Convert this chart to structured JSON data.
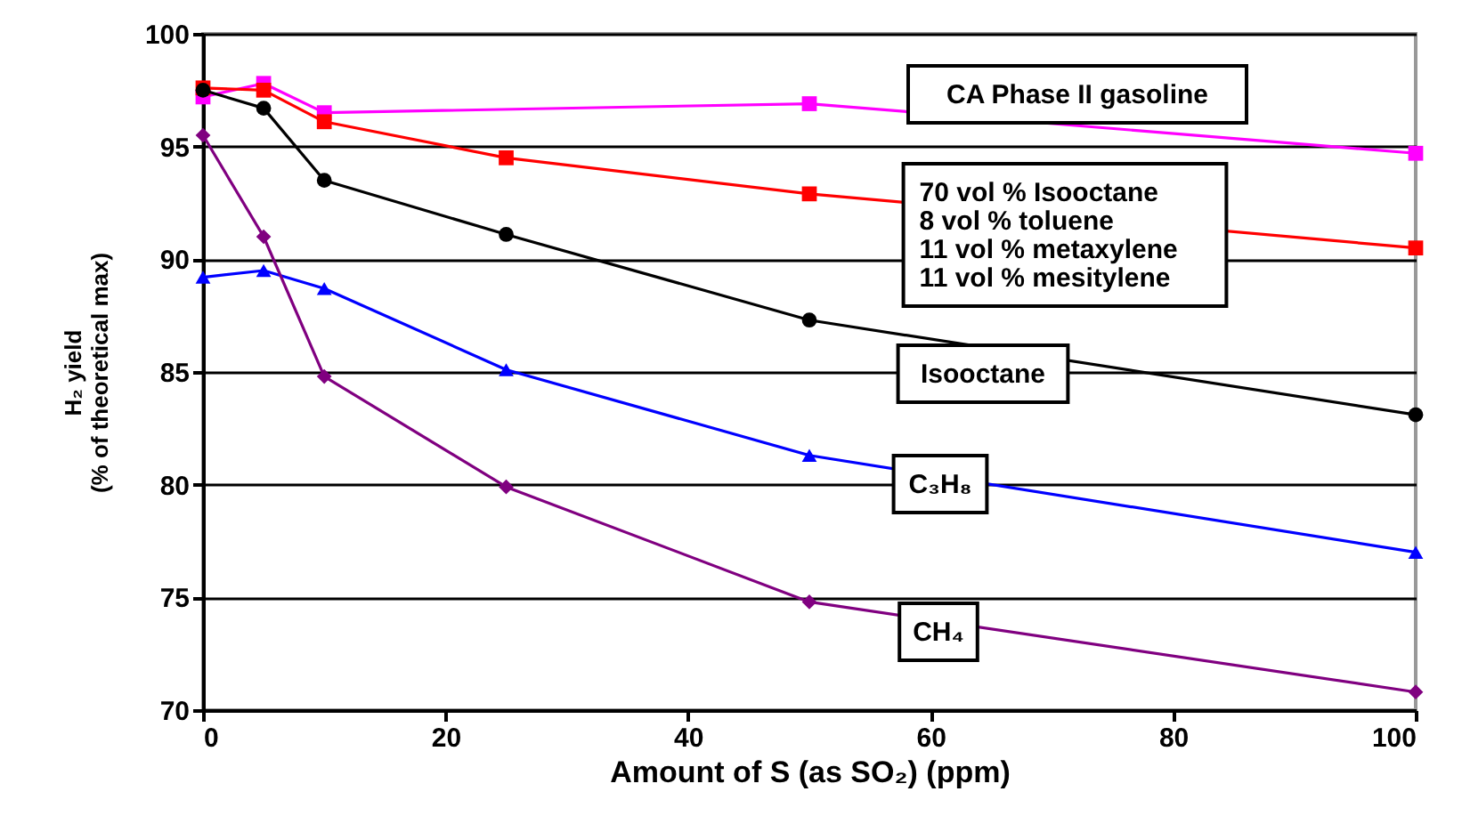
{
  "chart_data": {
    "type": "line",
    "xlabel": "Amount of S (as SO₂) (ppm)",
    "ylabel": "H₂ yield\n(% of theoretical max)",
    "xlim": [
      0,
      100
    ],
    "xticks": [
      0,
      20,
      40,
      60,
      80,
      100
    ],
    "ylim": [
      70,
      100
    ],
    "yticks": [
      70,
      75,
      80,
      85,
      90,
      95,
      100
    ],
    "grid": "y",
    "legend": false,
    "series": [
      {
        "name": "CA Phase II gasoline",
        "color": "#ff00ff",
        "marker": "square",
        "x": [
          0,
          5,
          10,
          50,
          100
        ],
        "values": [
          97.2,
          97.8,
          96.5,
          96.9,
          94.7
        ]
      },
      {
        "name": "70 vol % Isooctane\n 8 vol % toluene\n11 vol % metaxylene\n11 vol % mesitylene",
        "color": "#ff0000",
        "marker": "square",
        "x": [
          0,
          5,
          10,
          25,
          50,
          100
        ],
        "values": [
          97.6,
          97.5,
          96.1,
          94.5,
          92.9,
          90.5
        ]
      },
      {
        "name": "Isooctane",
        "color": "#000000",
        "marker": "circle",
        "x": [
          0,
          5,
          10,
          25,
          50,
          100
        ],
        "values": [
          97.5,
          96.7,
          93.5,
          91.1,
          87.3,
          83.1
        ]
      },
      {
        "name": "C₃H₈",
        "color": "#0000ff",
        "marker": "triangle",
        "x": [
          0,
          5,
          10,
          25,
          50,
          100
        ],
        "values": [
          89.2,
          89.5,
          88.7,
          85.1,
          81.3,
          77.0
        ]
      },
      {
        "name": "CH₄",
        "color": "#800080",
        "marker": "diamond",
        "x": [
          0,
          5,
          10,
          25,
          50,
          100
        ],
        "values": [
          95.5,
          91.0,
          84.8,
          79.9,
          74.8,
          70.8
        ]
      }
    ]
  }
}
